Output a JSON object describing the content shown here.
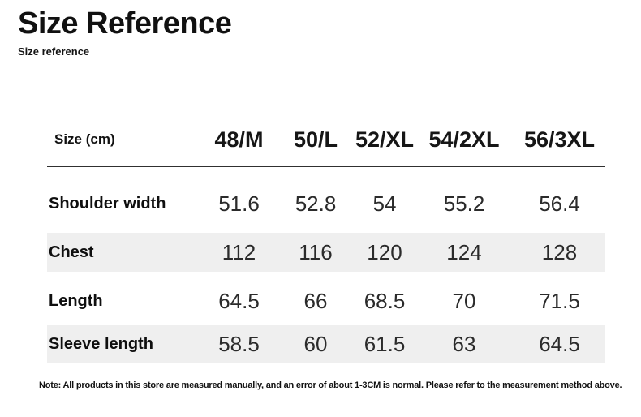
{
  "page": {
    "title": "Size Reference",
    "subtitle": "Size reference",
    "note": "Note: All products in this store are measured manually, and an error of about 1-3CM is normal. Please refer to the measurement method above."
  },
  "table": {
    "header": {
      "label": "Size (cm)",
      "columns": [
        "48/M",
        "50/L",
        "52/XL",
        "54/2XL",
        "56/3XL"
      ]
    },
    "rows": [
      {
        "label": "Shoulder width",
        "values": [
          "51.6",
          "52.8",
          "54",
          "55.2",
          "56.4"
        ],
        "shaded": false
      },
      {
        "label": "Chest",
        "values": [
          "112",
          "116",
          "120",
          "124",
          "128"
        ],
        "shaded": true
      },
      {
        "label": "Length",
        "values": [
          "64.5",
          "66",
          "68.5",
          "70",
          "71.5"
        ],
        "shaded": false
      },
      {
        "label": "Sleeve length",
        "values": [
          "58.5",
          "60",
          "61.5",
          "63",
          "64.5"
        ],
        "shaded": true
      }
    ]
  },
  "colors": {
    "row_shade": "#efefef",
    "divider": "#303030",
    "label_text": "#0f0f0f",
    "value_text": "#2b2b2b",
    "background": "#ffffff"
  },
  "chart_data": {
    "type": "table",
    "title": "Size Reference",
    "unit": "cm",
    "columns": [
      "Size (cm)",
      "48/M",
      "50/L",
      "52/XL",
      "54/2XL",
      "56/3XL"
    ],
    "rows": [
      [
        "Shoulder width",
        51.6,
        52.8,
        54,
        55.2,
        56.4
      ],
      [
        "Chest",
        112,
        116,
        120,
        124,
        128
      ],
      [
        "Length",
        64.5,
        66,
        68.5,
        70,
        71.5
      ],
      [
        "Sleeve length",
        58.5,
        60,
        61.5,
        63,
        64.5
      ]
    ]
  }
}
